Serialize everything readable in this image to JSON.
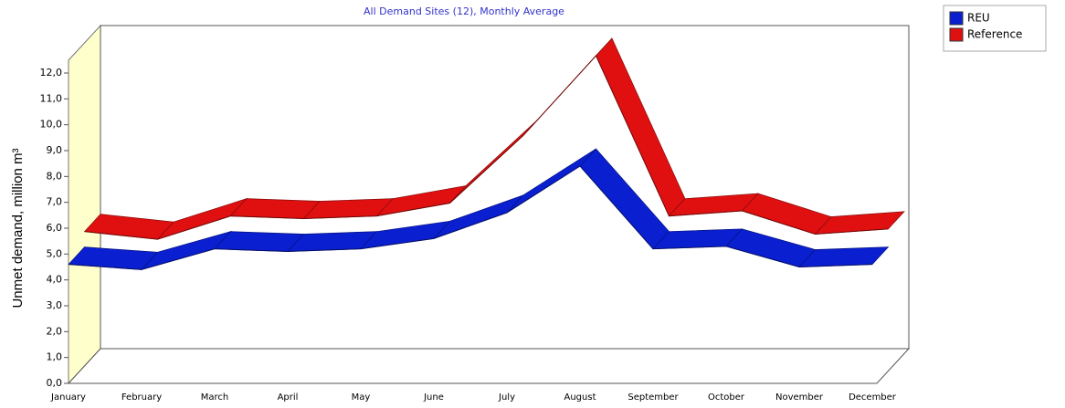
{
  "chart_data": {
    "type": "ribbon",
    "title": "All Demand Sites (12),  Monthly Average",
    "y_label": "Unmet demand, million m³",
    "categories": [
      "January",
      "February",
      "March",
      "April",
      "May",
      "June",
      "July",
      "August",
      "September",
      "October",
      "November",
      "December"
    ],
    "series": [
      {
        "name": "REU",
        "color": "#0a1fd0",
        "values": [
          4.6,
          4.4,
          5.2,
          5.1,
          5.2,
          5.6,
          6.6,
          8.4,
          5.2,
          5.3,
          4.5,
          4.6
        ]
      },
      {
        "name": "Reference",
        "color": "#e01010",
        "values": [
          5.2,
          4.9,
          5.8,
          5.7,
          5.8,
          6.3,
          8.9,
          12.0,
          5.8,
          6.0,
          5.1,
          5.3
        ]
      }
    ],
    "ylim": [
      0,
      12
    ],
    "yticks": [
      {
        "value": 0,
        "label": "0,0"
      },
      {
        "value": 1,
        "label": "1,0"
      },
      {
        "value": 2,
        "label": "2,0"
      },
      {
        "value": 3,
        "label": "3,0"
      },
      {
        "value": 4,
        "label": "4,0"
      },
      {
        "value": 5,
        "label": "5,0"
      },
      {
        "value": 6,
        "label": "6,0"
      },
      {
        "value": 7,
        "label": "7,0"
      },
      {
        "value": 8,
        "label": "8,0"
      },
      {
        "value": 9,
        "label": "9,0"
      },
      {
        "value": 10,
        "label": "10,0"
      },
      {
        "value": 11,
        "label": "11,0"
      },
      {
        "value": 12,
        "label": "12,0"
      }
    ],
    "legend": "top-right"
  }
}
